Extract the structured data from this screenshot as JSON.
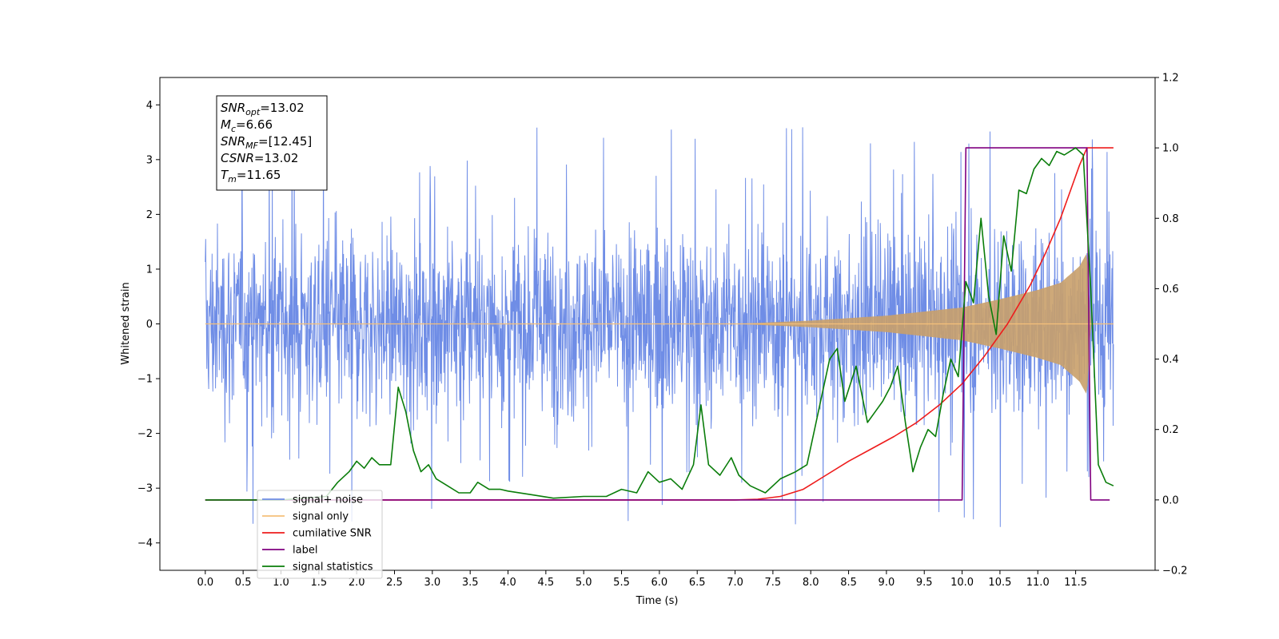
{
  "chart_data": {
    "type": "line",
    "xlabel": "Time (s)",
    "ylabel": "Whitened strain",
    "x_ticks": [
      0.0,
      0.5,
      1.0,
      1.5,
      2.0,
      2.5,
      3.0,
      3.5,
      4.0,
      4.5,
      5.0,
      5.5,
      6.0,
      6.5,
      7.0,
      7.5,
      8.0,
      8.5,
      9.0,
      9.5,
      10.0,
      10.5,
      11.0,
      11.5
    ],
    "xlim": [
      -0.6,
      12.55
    ],
    "ylim_left": [
      -4.5,
      4.5
    ],
    "y_ticks_left": [
      -4,
      -3,
      -2,
      -1,
      0,
      1,
      2,
      3,
      4
    ],
    "ylim_right": [
      -0.2,
      1.2
    ],
    "y_ticks_right": [
      -0.2,
      0.0,
      0.2,
      0.4,
      0.6,
      0.8,
      1.0,
      1.2
    ],
    "legend_position": "lower-left",
    "grid": false,
    "annotation": {
      "lines": [
        {
          "base": "SNR",
          "sub": "opt",
          "rest": "=13.02"
        },
        {
          "base": "M",
          "sub": "c",
          "rest": "=6.66"
        },
        {
          "base": "SNR",
          "sub": "MF",
          "rest": "=[12.45]"
        },
        {
          "base": "CSNR",
          "sub": "",
          "rest": "=13.02"
        },
        {
          "base": "T",
          "sub": "m",
          "rest": "=11.65"
        }
      ]
    },
    "series": [
      {
        "name": "signal+ noise",
        "axis": "left",
        "color": "#6f8de6",
        "kind": "noise-band",
        "x_range": [
          0.0,
          12.0
        ],
        "typical_amplitude": 1.8,
        "peak_amplitude": 4.1
      },
      {
        "name": "signal only",
        "axis": "left",
        "color": "#f5c07a",
        "kind": "chirp",
        "x_range": [
          0.0,
          11.65
        ],
        "amplitude_points": [
          [
            0.0,
            0.0
          ],
          [
            7.0,
            0.0
          ],
          [
            8.0,
            0.06
          ],
          [
            9.0,
            0.15
          ],
          [
            10.0,
            0.3
          ],
          [
            10.5,
            0.45
          ],
          [
            11.0,
            0.62
          ],
          [
            11.3,
            0.75
          ],
          [
            11.55,
            1.05
          ],
          [
            11.65,
            1.3
          ],
          [
            11.7,
            0.0
          ],
          [
            12.0,
            0.0
          ]
        ]
      },
      {
        "name": "cumilative SNR",
        "axis": "right",
        "color": "#ee1c1c",
        "points": [
          [
            0.0,
            0.0
          ],
          [
            7.0,
            0.0
          ],
          [
            7.3,
            0.002
          ],
          [
            7.6,
            0.01
          ],
          [
            7.9,
            0.03
          ],
          [
            8.2,
            0.07
          ],
          [
            8.5,
            0.11
          ],
          [
            8.8,
            0.145
          ],
          [
            9.1,
            0.18
          ],
          [
            9.4,
            0.22
          ],
          [
            9.7,
            0.27
          ],
          [
            10.0,
            0.33
          ],
          [
            10.3,
            0.41
          ],
          [
            10.6,
            0.5
          ],
          [
            10.9,
            0.61
          ],
          [
            11.1,
            0.7
          ],
          [
            11.3,
            0.8
          ],
          [
            11.45,
            0.89
          ],
          [
            11.55,
            0.95
          ],
          [
            11.65,
            1.0
          ],
          [
            11.7,
            1.0
          ],
          [
            12.0,
            1.0
          ]
        ]
      },
      {
        "name": "label",
        "axis": "right",
        "color": "#800080",
        "points": [
          [
            0.0,
            0.0
          ],
          [
            10.0,
            0.0
          ],
          [
            10.05,
            1.0
          ],
          [
            11.65,
            1.0
          ],
          [
            11.7,
            0.0
          ],
          [
            11.95,
            0.0
          ]
        ]
      },
      {
        "name": "signal statistics",
        "axis": "right",
        "color": "#0a7d0a",
        "points": [
          [
            0.0,
            0.0
          ],
          [
            1.0,
            0.0
          ],
          [
            1.6,
            0.01
          ],
          [
            1.75,
            0.05
          ],
          [
            1.9,
            0.08
          ],
          [
            2.0,
            0.11
          ],
          [
            2.1,
            0.09
          ],
          [
            2.2,
            0.12
          ],
          [
            2.3,
            0.1
          ],
          [
            2.45,
            0.1
          ],
          [
            2.55,
            0.32
          ],
          [
            2.65,
            0.25
          ],
          [
            2.75,
            0.14
          ],
          [
            2.85,
            0.08
          ],
          [
            2.95,
            0.1
          ],
          [
            3.05,
            0.06
          ],
          [
            3.2,
            0.04
          ],
          [
            3.35,
            0.02
          ],
          [
            3.5,
            0.02
          ],
          [
            3.6,
            0.05
          ],
          [
            3.75,
            0.03
          ],
          [
            3.9,
            0.03
          ],
          [
            4.0,
            0.025
          ],
          [
            4.3,
            0.015
          ],
          [
            4.6,
            0.005
          ],
          [
            5.0,
            0.01
          ],
          [
            5.3,
            0.01
          ],
          [
            5.5,
            0.03
          ],
          [
            5.7,
            0.02
          ],
          [
            5.85,
            0.08
          ],
          [
            6.0,
            0.05
          ],
          [
            6.15,
            0.06
          ],
          [
            6.3,
            0.03
          ],
          [
            6.45,
            0.1
          ],
          [
            6.55,
            0.27
          ],
          [
            6.65,
            0.1
          ],
          [
            6.8,
            0.07
          ],
          [
            6.95,
            0.12
          ],
          [
            7.05,
            0.07
          ],
          [
            7.2,
            0.04
          ],
          [
            7.4,
            0.02
          ],
          [
            7.6,
            0.06
          ],
          [
            7.8,
            0.08
          ],
          [
            7.95,
            0.1
          ],
          [
            8.05,
            0.2
          ],
          [
            8.15,
            0.3
          ],
          [
            8.25,
            0.4
          ],
          [
            8.35,
            0.43
          ],
          [
            8.45,
            0.28
          ],
          [
            8.6,
            0.38
          ],
          [
            8.75,
            0.22
          ],
          [
            8.85,
            0.25
          ],
          [
            8.95,
            0.28
          ],
          [
            9.05,
            0.32
          ],
          [
            9.15,
            0.38
          ],
          [
            9.25,
            0.22
          ],
          [
            9.35,
            0.08
          ],
          [
            9.45,
            0.15
          ],
          [
            9.55,
            0.2
          ],
          [
            9.65,
            0.18
          ],
          [
            9.75,
            0.3
          ],
          [
            9.85,
            0.4
          ],
          [
            9.95,
            0.35
          ],
          [
            10.05,
            0.62
          ],
          [
            10.15,
            0.56
          ],
          [
            10.25,
            0.8
          ],
          [
            10.35,
            0.58
          ],
          [
            10.45,
            0.47
          ],
          [
            10.55,
            0.75
          ],
          [
            10.65,
            0.65
          ],
          [
            10.75,
            0.88
          ],
          [
            10.85,
            0.87
          ],
          [
            10.95,
            0.94
          ],
          [
            11.05,
            0.97
          ],
          [
            11.15,
            0.95
          ],
          [
            11.25,
            0.99
          ],
          [
            11.35,
            0.98
          ],
          [
            11.5,
            1.0
          ],
          [
            11.6,
            0.98
          ],
          [
            11.7,
            0.6
          ],
          [
            11.8,
            0.1
          ],
          [
            11.9,
            0.05
          ],
          [
            12.0,
            0.04
          ]
        ]
      }
    ]
  }
}
